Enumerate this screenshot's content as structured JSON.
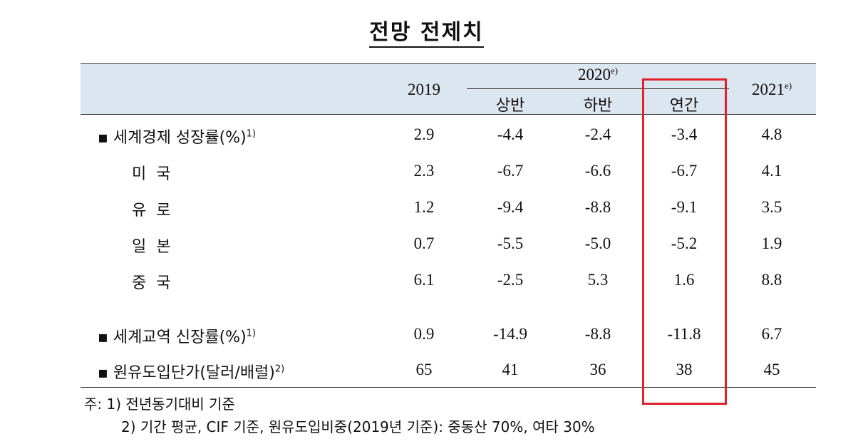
{
  "title": "전망 전제치",
  "header": {
    "col_2019": "2019",
    "col_2020": "2020",
    "col_2020_sup": "e)",
    "col_2020_h1": "상반",
    "col_2020_h2": "하반",
    "col_2020_annual": "연간",
    "col_2021": "2021",
    "col_2021_sup": "e)"
  },
  "rows": [
    {
      "label": "▪ 세계경제 성장률(%)",
      "sup": "1)",
      "values": [
        "2.9",
        "-4.4",
        "-2.4",
        "-3.4",
        "4.8"
      ]
    },
    {
      "label": "미  국",
      "sup": "",
      "values": [
        "2.3",
        "-6.7",
        "-6.6",
        "-6.7",
        "4.1"
      ]
    },
    {
      "label": "유  로",
      "sup": "",
      "values": [
        "1.2",
        "-9.4",
        "-8.8",
        "-9.1",
        "3.5"
      ]
    },
    {
      "label": "일  본",
      "sup": "",
      "values": [
        "0.7",
        "-5.5",
        "-5.0",
        "-5.2",
        "1.9"
      ]
    },
    {
      "label": "중  국",
      "sup": "",
      "values": [
        "6.1",
        "-2.5",
        "5.3",
        "1.6",
        "8.8"
      ]
    },
    {
      "label": "▪ 세계교역 신장률(%)",
      "sup": "1)",
      "values": [
        "0.9",
        "-14.9",
        "-8.8",
        "-11.8",
        "6.7"
      ]
    },
    {
      "label": "▪ 원유도입단가(달러/배럴)",
      "sup": "2)",
      "values": [
        "65",
        "41",
        "36",
        "38",
        "45"
      ]
    }
  ],
  "notes": {
    "line1": "주: 1) 전년동기대비 기준",
    "line2": "2) 기간 평균, CIF 기준, 원유도입비중(2019년 기준): 중동산 70%, 여타 30%"
  },
  "highlight_color": "#e0232b",
  "header_bg_color": "#dce6f1"
}
